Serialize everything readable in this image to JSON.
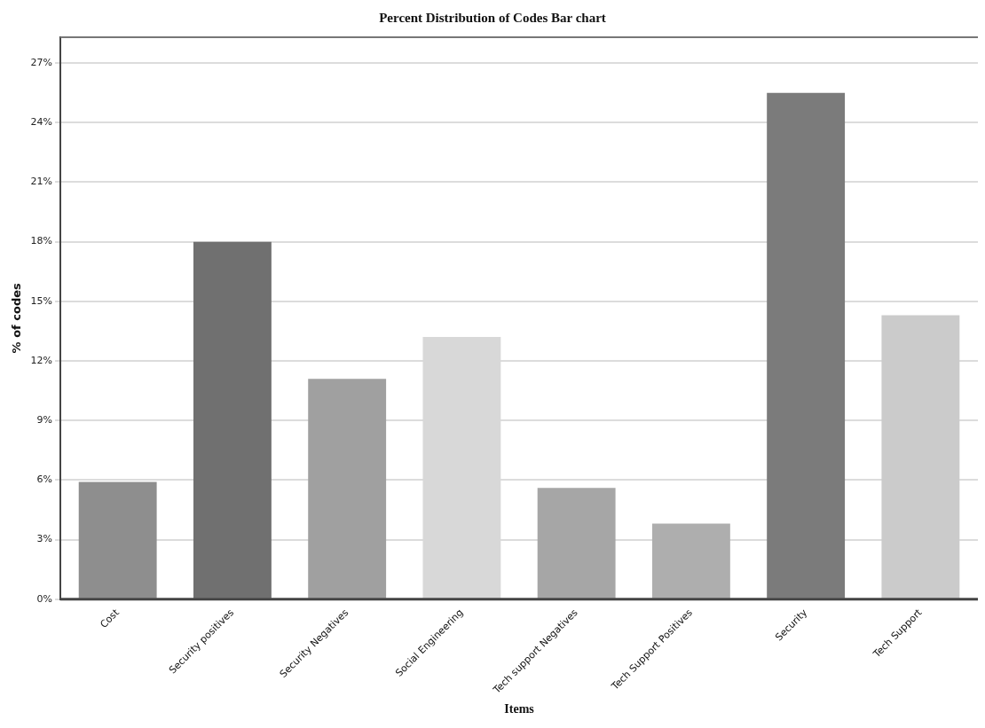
{
  "chart_data": {
    "type": "bar",
    "title": "Percent Distribution of Codes Bar chart",
    "xlabel": "Items",
    "ylabel": "% of codes",
    "categories": [
      "Cost",
      "Security positives",
      "Security Negatives",
      "Social Engineering",
      "Tech support Negatives",
      "Tech Support Positives",
      "Security",
      "Tech Support"
    ],
    "values": [
      5.9,
      18.0,
      11.1,
      13.2,
      5.6,
      3.8,
      25.5,
      14.3
    ],
    "colors": [
      "#8e8e8e",
      "#707070",
      "#a0a0a0",
      "#d8d8d8",
      "#a6a6a6",
      "#aeaeae",
      "#7b7b7b",
      "#cbcbcb"
    ],
    "ylim": [
      0,
      28.3
    ],
    "yticks": [
      {
        "value": 0,
        "label": "0%"
      },
      {
        "value": 3,
        "label": "3%"
      },
      {
        "value": 6,
        "label": "6%"
      },
      {
        "value": 9,
        "label": "9%"
      },
      {
        "value": 12,
        "label": "12%"
      },
      {
        "value": 15,
        "label": "15%"
      },
      {
        "value": 18,
        "label": "18%"
      },
      {
        "value": 21,
        "label": "21%"
      },
      {
        "value": 24,
        "label": "24%"
      },
      {
        "value": 27,
        "label": "27%"
      }
    ],
    "grid": "y",
    "legend": false
  }
}
